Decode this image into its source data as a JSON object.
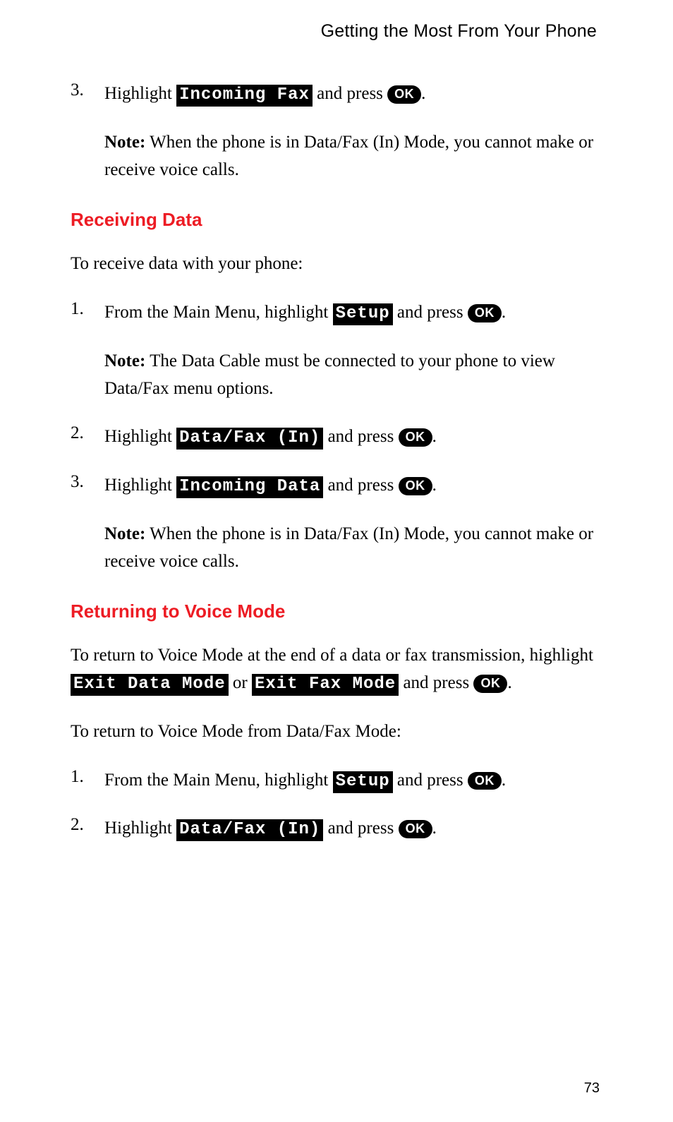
{
  "header_title": "Getting the Most From Your Phone",
  "page_number": "73",
  "colors": {
    "heading_red": "#ed1c24",
    "lcd_bg": "#000000",
    "lcd_fg": "#ffffff",
    "ok_bg": "#000000",
    "ok_fg": "#ffffff",
    "body_text": "#000000",
    "background": "#ffffff"
  },
  "fonts": {
    "body": "Georgia/Times, serif, ~25px",
    "heading": "Arial/Helvetica bold, ~26px",
    "header": "Arial/Helvetica, ~25px",
    "lcd": "Courier New monospace bold, ~24px",
    "ok_button": "Arial bold, ~18px"
  },
  "ok_label": "OK",
  "top_step": {
    "num": "3.",
    "pre": "Highlight ",
    "lcd": "Incoming Fax",
    "mid": " and press ",
    "end": "."
  },
  "top_note": {
    "label": "Note:",
    "text": " When the phone is in Data/Fax (In) Mode, you cannot make or receive voice calls."
  },
  "section_receiving": {
    "title": "Receiving Data",
    "intro": "To receive data with your phone:",
    "step1": {
      "num": "1.",
      "pre": "From the Main Menu, highlight ",
      "lcd": "Setup",
      "mid": " and press ",
      "end": "."
    },
    "note1": {
      "label": "Note:",
      "text": " The Data Cable must be connected to your phone to view Data/Fax menu options."
    },
    "step2": {
      "num": "2.",
      "pre": "Highlight ",
      "lcd": "Data/Fax (In)",
      "mid": " and press ",
      "end": "."
    },
    "step3": {
      "num": "3.",
      "pre": "Highlight ",
      "lcd": "Incoming Data",
      "mid": " and press ",
      "end": "."
    },
    "note2": {
      "label": "Note:",
      "text": " When the phone is in Data/Fax (In) Mode, you cannot make or receive voice calls."
    }
  },
  "section_returning": {
    "title": "Returning to Voice Mode",
    "para1_pre": "To return to Voice Mode at the end of a data or fax transmission, highlight ",
    "para1_lcd1": "Exit Data Mode",
    "para1_mid1": " or ",
    "para1_lcd2": "Exit Fax Mode",
    "para1_mid2": " and press ",
    "para1_end": ".",
    "para2": "To return to Voice Mode from Data/Fax Mode:",
    "step1": {
      "num": "1.",
      "pre": "From the Main Menu, highlight ",
      "lcd": "Setup",
      "mid": " and press ",
      "end": "."
    },
    "step2": {
      "num": "2.",
      "pre": "Highlight ",
      "lcd": "Data/Fax (In)",
      "mid": " and press ",
      "end": "."
    }
  }
}
